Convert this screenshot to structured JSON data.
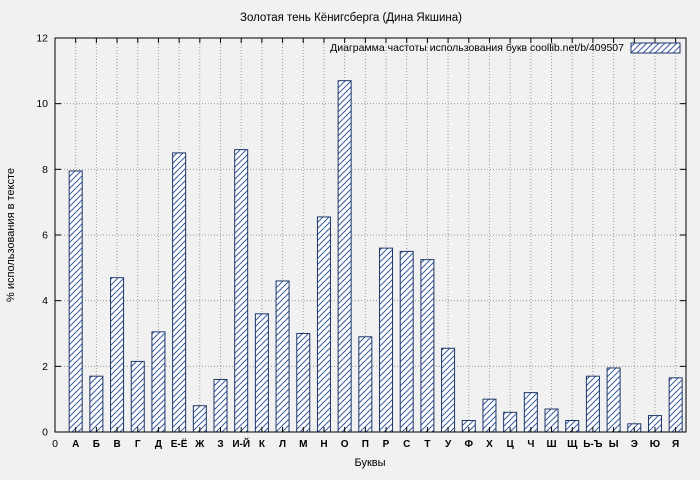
{
  "chart_data": {
    "type": "bar",
    "title": "Золотая тень Кёнигсберга (Дина Якшина)",
    "legend": "Диаграмма частоты использования букв   coollib.net/b/409507",
    "xlabel": "Буквы",
    "ylabel": "% использования в тексте",
    "origin_label": "0",
    "ylim": [
      0,
      12
    ],
    "yticks": [
      0,
      2,
      4,
      6,
      8,
      10,
      12
    ],
    "grid": true,
    "legend_position": "top-right",
    "categories": [
      "А",
      "Б",
      "В",
      "Г",
      "Д",
      "Е-Ё",
      "Ж",
      "З",
      "И-Й",
      "К",
      "Л",
      "М",
      "Н",
      "О",
      "П",
      "Р",
      "С",
      "Т",
      "У",
      "Ф",
      "Х",
      "Ц",
      "Ч",
      "Ш",
      "Щ",
      "Ь-Ъ",
      "Ы",
      "Э",
      "Ю",
      "Я"
    ],
    "values": [
      7.95,
      1.7,
      4.7,
      2.15,
      3.05,
      8.5,
      0.8,
      1.6,
      8.6,
      3.6,
      4.6,
      3.0,
      6.55,
      10.7,
      2.9,
      5.6,
      5.5,
      5.25,
      2.55,
      0.35,
      1.0,
      0.6,
      1.2,
      0.7,
      0.35,
      1.7,
      1.95,
      0.25,
      0.5,
      1.65
    ],
    "colors": {
      "hatch": "#3a5ba0",
      "bar_stroke": "#1c3668",
      "bar_fill": "#ffffff",
      "grid": "#999999",
      "frame": "#000000",
      "background": "#f1f1f1",
      "text": "#000000"
    }
  }
}
